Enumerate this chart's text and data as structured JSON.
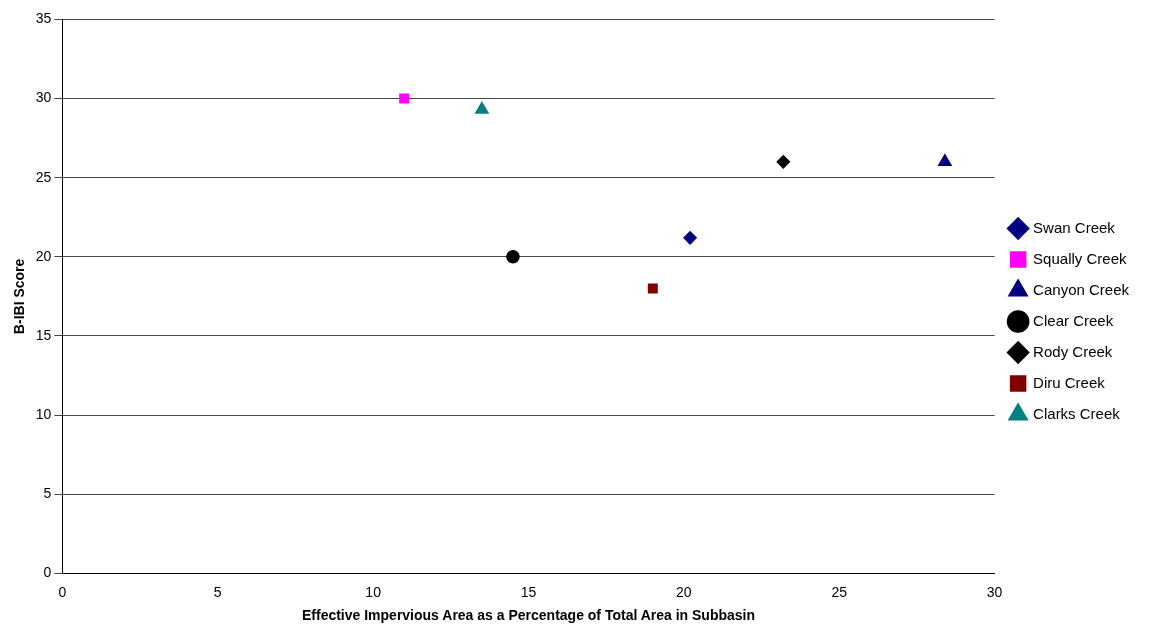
{
  "chart_data": {
    "type": "scatter",
    "xlabel": "Effective Impervious Area as a Percentage of Total Area in Subbasin",
    "ylabel": "B-IBI Score",
    "xlim": [
      0,
      30
    ],
    "xticks": [
      0,
      5,
      10,
      15,
      20,
      25,
      30
    ],
    "ylim": [
      0,
      35
    ],
    "yticks": [
      0,
      5,
      10,
      15,
      20,
      25,
      30,
      35
    ],
    "grid": "y",
    "legend": "right",
    "series": [
      {
        "name": "Swan Creek",
        "color": "#000080",
        "marker": "diamond",
        "x": [
          20.2
        ],
        "values": [
          21.2
        ]
      },
      {
        "name": "Squally Creek",
        "color": "#ff00ff",
        "marker": "square",
        "x": [
          11
        ],
        "values": [
          30
        ]
      },
      {
        "name": "Canyon Creek",
        "color": "#000080",
        "marker": "triangle",
        "x": [
          28.4
        ],
        "values": [
          26
        ]
      },
      {
        "name": "Clear Creek",
        "color": "#000000",
        "marker": "circle",
        "x": [
          14.5
        ],
        "values": [
          20
        ]
      },
      {
        "name": "Rody Creek",
        "color": "#000000",
        "marker": "diamond",
        "x": [
          23.2
        ],
        "values": [
          26
        ]
      },
      {
        "name": "Diru Creek",
        "color": "#800000",
        "marker": "square",
        "x": [
          19
        ],
        "values": [
          18
        ]
      },
      {
        "name": "Clarks Creek",
        "color": "#008080",
        "marker": "triangle",
        "x": [
          13.5
        ],
        "values": [
          29.3
        ]
      }
    ]
  }
}
